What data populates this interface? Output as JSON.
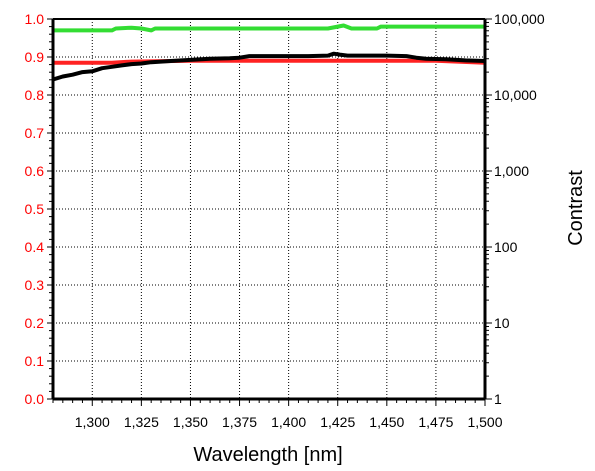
{
  "chart_data": {
    "type": "line",
    "title": "",
    "xlabel": "Wavelength [nm]",
    "ylabel_left": "",
    "ylabel_right": "Contrast",
    "xlim": [
      1280,
      1500
    ],
    "ylim_left": [
      0.0,
      1.0
    ],
    "ylim_right": [
      1,
      100000
    ],
    "right_scale": "log",
    "grid": true,
    "x_ticks": [
      1300,
      1325,
      1350,
      1375,
      1400,
      1425,
      1450,
      1475,
      1500
    ],
    "x_tick_labels": [
      "1,300",
      "1,325",
      "1,350",
      "1,375",
      "1,400",
      "1,425",
      "1,450",
      "1,475",
      "1,500"
    ],
    "y_left_ticks": [
      0.0,
      0.1,
      0.2,
      0.3,
      0.4,
      0.5,
      0.6,
      0.7,
      0.8,
      0.9,
      1.0
    ],
    "y_left_tick_labels": [
      "0.0",
      "0.1",
      "0.2",
      "0.3",
      "0.4",
      "0.5",
      "0.6",
      "0.7",
      "0.8",
      "0.9",
      "1.0"
    ],
    "y_right_ticks": [
      1,
      10,
      100,
      1000,
      10000,
      100000
    ],
    "y_right_tick_labels": [
      "1",
      "10",
      "100",
      "1,000",
      "10,000",
      "100,000"
    ],
    "colors": {
      "left_axis": "#ff0000",
      "right_axis": "#000000"
    },
    "series": [
      {
        "color": "#33dd33",
        "axis": "left",
        "x": [
          1280,
          1290,
          1300,
          1310,
          1312,
          1320,
          1325,
          1330,
          1332,
          1340,
          1350,
          1375,
          1400,
          1420,
          1428,
          1432,
          1440,
          1445,
          1447,
          1475,
          1500
        ],
        "y": [
          0.97,
          0.97,
          0.97,
          0.97,
          0.975,
          0.977,
          0.975,
          0.97,
          0.975,
          0.975,
          0.975,
          0.975,
          0.975,
          0.975,
          0.983,
          0.975,
          0.975,
          0.975,
          0.98,
          0.98,
          0.98
        ]
      },
      {
        "color": "#ff2222",
        "axis": "left",
        "x": [
          1280,
          1300,
          1310,
          1320,
          1350,
          1400,
          1450,
          1475,
          1500
        ],
        "y": [
          0.885,
          0.885,
          0.885,
          0.888,
          0.89,
          0.89,
          0.89,
          0.89,
          0.885
        ]
      },
      {
        "color": "#000000",
        "axis": "right",
        "x": [
          1280,
          1285,
          1290,
          1295,
          1300,
          1305,
          1310,
          1315,
          1320,
          1325,
          1330,
          1340,
          1350,
          1360,
          1370,
          1375,
          1380,
          1390,
          1400,
          1410,
          1420,
          1423,
          1426,
          1430,
          1440,
          1450,
          1460,
          1465,
          1470,
          1480,
          1490,
          1500
        ],
        "y": [
          16000,
          17500,
          18500,
          20000,
          20500,
          22500,
          23500,
          24500,
          25500,
          26000,
          27000,
          28000,
          29000,
          30000,
          30500,
          31000,
          32500,
          32500,
          32500,
          32500,
          33000,
          35000,
          34000,
          33000,
          33000,
          33000,
          32500,
          31000,
          30000,
          29500,
          28500,
          28000
        ]
      }
    ]
  }
}
